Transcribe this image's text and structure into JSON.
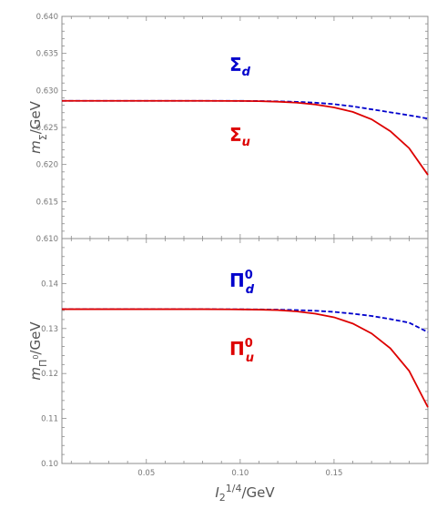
{
  "chart_data": [
    {
      "type": "line",
      "title": "",
      "xlabel": "I_2^{1/4}/GeV",
      "ylabel": "m_Σ/GeV",
      "xlim": [
        0.005,
        0.2
      ],
      "ylim": [
        0.61,
        0.64
      ],
      "x_ticks": [
        "0.05",
        "0.10",
        "0.15"
      ],
      "y_ticks": [
        "0.610",
        "0.615",
        "0.620",
        "0.625",
        "0.630",
        "0.635",
        "0.640"
      ],
      "grid": false,
      "legend": "none",
      "series": [
        {
          "label_main": "Σ",
          "label_sub": "d",
          "label_sup": "",
          "color": "#0000cc",
          "dash": "dashed",
          "x": [
            0.005,
            0.02,
            0.04,
            0.06,
            0.08,
            0.1,
            0.11,
            0.12,
            0.13,
            0.14,
            0.15,
            0.16,
            0.17,
            0.18,
            0.19,
            0.2
          ],
          "y": [
            0.6286,
            0.6286,
            0.6286,
            0.6286,
            0.6286,
            0.62859,
            0.62857,
            0.62853,
            0.62846,
            0.62834,
            0.62815,
            0.62785,
            0.62745,
            0.62705,
            0.62665,
            0.6262
          ]
        },
        {
          "label_main": "Σ",
          "label_sub": "u",
          "label_sup": "",
          "color": "#dd0000",
          "dash": "solid",
          "x": [
            0.005,
            0.02,
            0.04,
            0.06,
            0.08,
            0.1,
            0.11,
            0.12,
            0.13,
            0.14,
            0.15,
            0.16,
            0.17,
            0.18,
            0.19,
            0.2
          ],
          "y": [
            0.6286,
            0.6286,
            0.6286,
            0.6286,
            0.6286,
            0.62858,
            0.62855,
            0.62848,
            0.62835,
            0.6281,
            0.6277,
            0.6271,
            0.6261,
            0.6245,
            0.6222,
            0.6186
          ]
        }
      ]
    },
    {
      "type": "line",
      "title": "",
      "xlabel": "I_2^{1/4}/GeV",
      "ylabel": "m_{Π^0}/GeV",
      "xlim": [
        0.005,
        0.2
      ],
      "ylim": [
        0.1,
        0.15
      ],
      "x_ticks": [
        "0.05",
        "0.10",
        "0.15"
      ],
      "y_ticks": [
        "0.10",
        "0.11",
        "0.12",
        "0.13",
        "0.14"
      ],
      "grid": false,
      "legend": "none",
      "series": [
        {
          "label_main": "Π",
          "label_sub": "d",
          "label_sup": "0",
          "color": "#0000cc",
          "dash": "dashed",
          "x": [
            0.005,
            0.02,
            0.04,
            0.06,
            0.08,
            0.1,
            0.11,
            0.12,
            0.13,
            0.14,
            0.15,
            0.16,
            0.17,
            0.18,
            0.19,
            0.2
          ],
          "y": [
            0.1343,
            0.1343,
            0.1343,
            0.1343,
            0.1343,
            0.13428,
            0.13425,
            0.1342,
            0.1341,
            0.13395,
            0.1337,
            0.1333,
            0.1328,
            0.1321,
            0.1313,
            0.1292
          ]
        },
        {
          "label_main": "Π",
          "label_sub": "u",
          "label_sup": "0",
          "color": "#dd0000",
          "dash": "solid",
          "x": [
            0.005,
            0.02,
            0.04,
            0.06,
            0.08,
            0.1,
            0.11,
            0.12,
            0.13,
            0.14,
            0.15,
            0.16,
            0.17,
            0.18,
            0.19,
            0.2
          ],
          "y": [
            0.1343,
            0.1343,
            0.1343,
            0.1343,
            0.1343,
            0.13425,
            0.1342,
            0.1341,
            0.1338,
            0.1333,
            0.1325,
            0.1311,
            0.1289,
            0.1256,
            0.1206,
            0.1125
          ]
        }
      ]
    }
  ]
}
